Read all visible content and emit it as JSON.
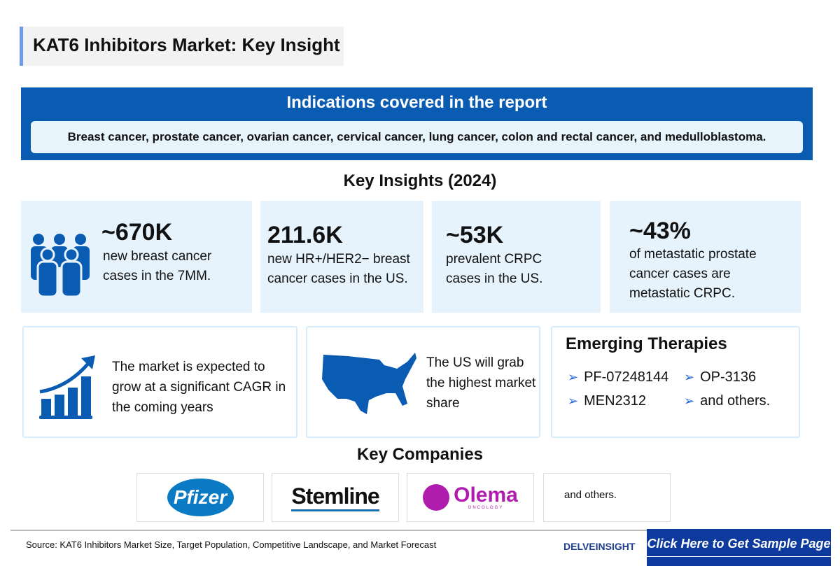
{
  "title": "KAT6 Inhibitors Market: Key Insight",
  "indications": {
    "heading": "Indications covered in the report",
    "text": "Breast cancer, prostate cancer, ovarian cancer, cervical cancer, lung cancer, colon and rectal cancer, and medulloblastoma."
  },
  "key_insights": {
    "heading": "Key Insights (2024)",
    "stats": [
      {
        "value": "~670K",
        "text": "new breast cancer cases in the 7MM."
      },
      {
        "value": "211.6K",
        "text": "new HR+/HER2− breast cancer cases in the US."
      },
      {
        "value": "~53K",
        "text": "prevalent CRPC cases in the US."
      },
      {
        "value": "~43%",
        "text": "of metastatic prostate cancer cases are metastatic CRPC."
      }
    ]
  },
  "market_card": "The market is expected to grow at a significant CAGR in the coming years",
  "us_card": "The US will grab the highest market share",
  "emerging": {
    "heading": "Emerging Therapies",
    "items": [
      "PF-07248144",
      "OP-3136",
      "MEN2312",
      "and others."
    ]
  },
  "companies": {
    "heading": "Key Companies",
    "logos": [
      "Pfizer",
      "Stemline",
      "Olema",
      "ONCOLOGY"
    ],
    "others": "and others."
  },
  "footer": {
    "source": "Source: KAT6 Inhibitors Market Size, Target Population, Competitive Landscape, and Market Forecast",
    "brand": "DELVEINSIGHT",
    "cta": "Click Here to Get Sample Page"
  },
  "colors": {
    "primary": "#0a5cb3",
    "light": "#e6f3fd",
    "cta": "#0d3a9c",
    "olema": "#b01cae",
    "pfizer": "#0a7ac4"
  }
}
